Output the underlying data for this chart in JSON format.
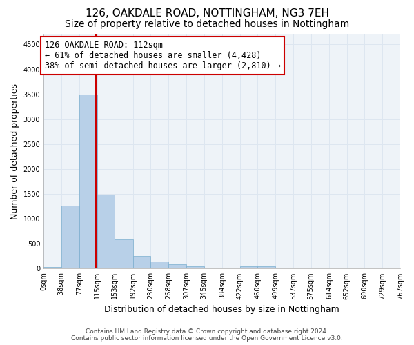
{
  "title_line1": "126, OAKDALE ROAD, NOTTINGHAM, NG3 7EH",
  "title_line2": "Size of property relative to detached houses in Nottingham",
  "xlabel": "Distribution of detached houses by size in Nottingham",
  "ylabel": "Number of detached properties",
  "footnote_line1": "Contains HM Land Registry data © Crown copyright and database right 2024.",
  "footnote_line2": "Contains public sector information licensed under the Open Government Licence v3.0.",
  "bar_edges": [
    0,
    38,
    77,
    115,
    153,
    192,
    230,
    268,
    307,
    345,
    384,
    422,
    460,
    499,
    537,
    575,
    614,
    652,
    690,
    729,
    767
  ],
  "bar_heights": [
    30,
    1270,
    3500,
    1480,
    580,
    250,
    140,
    90,
    40,
    15,
    5,
    40,
    40,
    0,
    0,
    0,
    0,
    0,
    0,
    0
  ],
  "bar_color": "#b8d0e8",
  "bar_edgecolor": "#7aaece",
  "vline_x": 112,
  "vline_color": "#cc0000",
  "annotation_text_line1": "126 OAKDALE ROAD: 112sqm",
  "annotation_text_line2": "← 61% of detached houses are smaller (4,428)",
  "annotation_text_line3": "38% of semi-detached houses are larger (2,810) →",
  "annotation_box_edgecolor": "#cc0000",
  "annotation_box_facecolor": "#ffffff",
  "ylim": [
    0,
    4700
  ],
  "yticks": [
    0,
    500,
    1000,
    1500,
    2000,
    2500,
    3000,
    3500,
    4000,
    4500
  ],
  "grid_color": "#dde6f0",
  "background_color": "#eef3f8",
  "title_fontsize": 11,
  "subtitle_fontsize": 10,
  "tick_label_fontsize": 7,
  "ylabel_fontsize": 9,
  "xlabel_fontsize": 9,
  "annotation_fontsize": 8.5,
  "footnote_fontsize": 6.5
}
